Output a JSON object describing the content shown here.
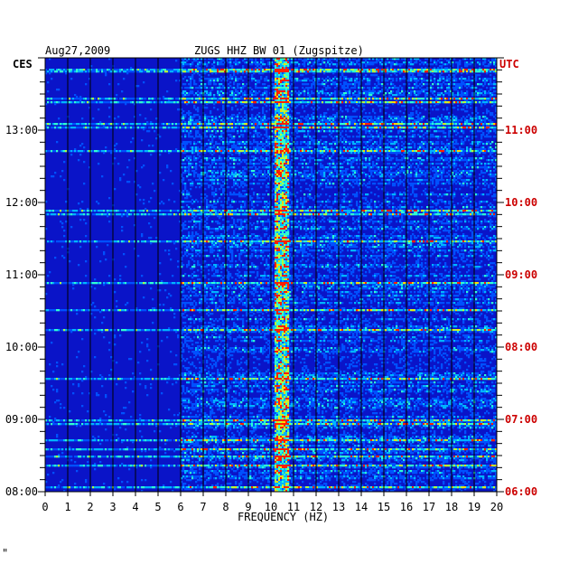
{
  "chart_data": {
    "type": "heatmap",
    "date": "Aug27,2009",
    "title": "ZUGS HHZ BW 01 (Zugspitze)",
    "left_timezone": "CES",
    "right_timezone": "UTC",
    "xlabel": "FREQUENCY (HZ)",
    "xlim": [
      0,
      20
    ],
    "x_ticks": [
      "0",
      "1",
      "2",
      "3",
      "4",
      "5",
      "6",
      "7",
      "8",
      "9",
      "10",
      "11",
      "12",
      "13",
      "14",
      "15",
      "16",
      "17",
      "18",
      "19",
      "20"
    ],
    "y_ticks_left": [
      "08:00",
      "09:00",
      "10:00",
      "11:00",
      "12:00",
      "13:00"
    ],
    "y_ticks_right": [
      "06:00",
      "07:00",
      "08:00",
      "09:00",
      "10:00",
      "11:00",
      "UTC"
    ],
    "time_range_local": [
      "08:00",
      "13:53"
    ],
    "grid": true,
    "colors": {
      "background": "#0a14c8",
      "low": "#0000a0",
      "mid": "#00c8ff",
      "high": "#ffff00",
      "peak": "#ff0000",
      "right_axis_text": "#cc0000",
      "grid": "#000000"
    },
    "dominant_frequency_band_hz": [
      10.2,
      10.8
    ],
    "footer_mark": "\""
  }
}
